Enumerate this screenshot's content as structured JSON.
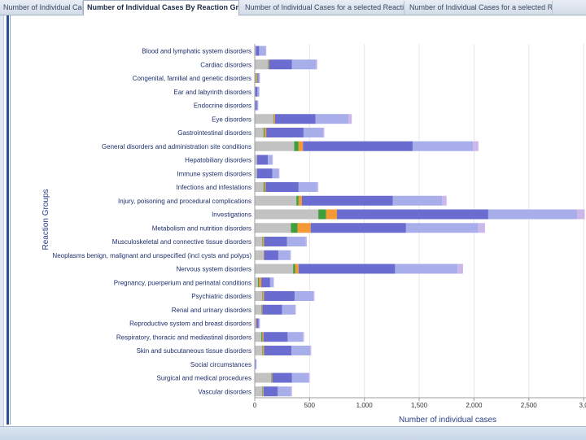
{
  "tabs": [
    {
      "label": "Number of Individual Cases"
    },
    {
      "label": "Number of Individual Cases By Reaction Groups"
    },
    {
      "label": "Number of Individual Cases for a selected Reaction Group"
    },
    {
      "label": "Number of Individual Cases for a selected Reaction"
    }
  ],
  "colors": {
    "gray": "#c2c2c2",
    "green": "#3f9f3f",
    "orange": "#f39a36",
    "blue": "#6a6ccf",
    "lightblue": "#a7aeea",
    "lavender": "#cbb7ea"
  },
  "chart_data": {
    "type": "bar",
    "orientation": "horizontal",
    "stacked": true,
    "ylabel": "Reaction Groups",
    "xlabel": "Number of individual cases",
    "xlim": [
      0,
      3000
    ],
    "xticks": [
      "0",
      "500",
      "1,000",
      "1,500",
      "2,000",
      "2,500",
      "3,0"
    ],
    "categories": [
      "Blood and lymphatic system disorders",
      "Cardiac disorders",
      "Congenital, familial and genetic disorders",
      "Ear and labyrinth disorders",
      "Endocrine disorders",
      "Eye disorders",
      "Gastrointestinal disorders",
      "General disorders and administration site conditions",
      "Hepatobiliary disorders",
      "Immune system disorders",
      "Infections and infestations",
      "Injury, poisoning and procedural complications",
      "Investigations",
      "Metabolism and nutrition disorders",
      "Musculoskeletal and connective tissue disorders",
      "Neoplasms benign, malignant and unspecified (incl cysts and polyps)",
      "Nervous system disorders",
      "Pregnancy, puerperium and perinatal conditions",
      "Psychiatric disorders",
      "Renal and urinary disorders",
      "Reproductive system and breast disorders",
      "Respiratory, thoracic and mediastinal disorders",
      "Skin and subcutaneous tissue disorders",
      "Social circumstances",
      "Surgical and medical procedures",
      "Vascular disorders"
    ],
    "series": [
      {
        "color": "gray",
        "values": [
          10,
          120,
          10,
          5,
          5,
          170,
          80,
          360,
          20,
          20,
          80,
          380,
          580,
          330,
          70,
          80,
          350,
          30,
          70,
          60,
          10,
          60,
          70,
          5,
          150,
          70
        ]
      },
      {
        "color": "green",
        "values": [
          0,
          5,
          5,
          0,
          0,
          5,
          10,
          40,
          0,
          0,
          10,
          20,
          70,
          60,
          5,
          0,
          20,
          10,
          5,
          5,
          0,
          10,
          5,
          0,
          5,
          5
        ]
      },
      {
        "color": "orange",
        "values": [
          0,
          5,
          10,
          0,
          0,
          10,
          15,
          40,
          0,
          0,
          10,
          30,
          100,
          120,
          10,
          5,
          30,
          20,
          10,
          5,
          5,
          10,
          10,
          0,
          5,
          5
        ]
      },
      {
        "color": "blue",
        "values": [
          30,
          210,
          10,
          20,
          15,
          370,
          340,
          1000,
          100,
          140,
          300,
          830,
          1380,
          870,
          210,
          130,
          880,
          80,
          280,
          180,
          20,
          220,
          250,
          5,
          180,
          130
        ]
      },
      {
        "color": "lightblue",
        "values": [
          60,
          220,
          10,
          15,
          10,
          300,
          180,
          550,
          40,
          60,
          170,
          450,
          810,
          660,
          170,
          110,
          570,
          30,
          170,
          120,
          10,
          140,
          170,
          5,
          150,
          120
        ]
      },
      {
        "color": "lavender",
        "values": [
          5,
          10,
          3,
          3,
          3,
          30,
          10,
          50,
          5,
          5,
          10,
          40,
          70,
          60,
          10,
          5,
          50,
          5,
          10,
          5,
          3,
          10,
          10,
          2,
          10,
          10
        ]
      }
    ]
  }
}
